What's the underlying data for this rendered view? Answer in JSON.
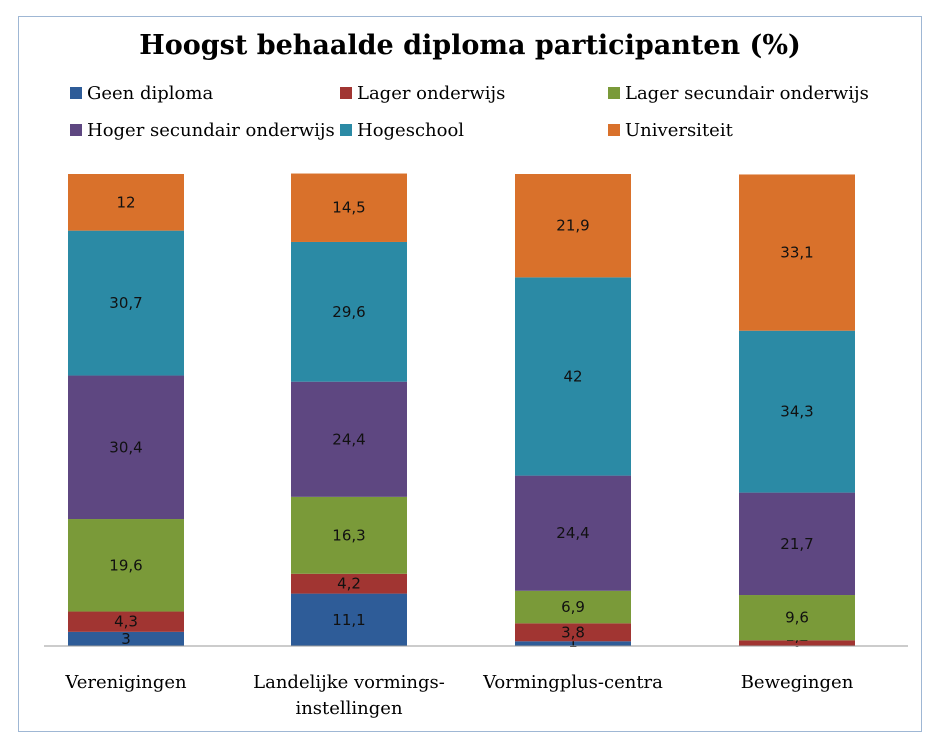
{
  "chart_data": {
    "type": "bar",
    "stacked": true,
    "title": "Hoogst behaalde diploma participanten (%)",
    "categories": [
      [
        "Verenigingen"
      ],
      [
        "Landelijke vormings-",
        "instellingen"
      ],
      [
        "Vormingplus-centra"
      ],
      [
        "Bewegingen"
      ]
    ],
    "series": [
      {
        "name": "Geen diploma",
        "color": "#2e5c98",
        "values": [
          3,
          11.1,
          1,
          0
        ],
        "labels": [
          "3",
          "11,1",
          "1",
          "0"
        ]
      },
      {
        "name": "Lager onderwijs",
        "color": "#a13532",
        "values": [
          4.3,
          4.2,
          3.8,
          1.2
        ],
        "labels": [
          "4,3",
          "4,2",
          "3,8",
          "1,2"
        ]
      },
      {
        "name": "Lager secundair onderwijs",
        "color": "#7a9a39",
        "values": [
          19.6,
          16.3,
          6.9,
          9.6
        ],
        "labels": [
          "19,6",
          "16,3",
          "6,9",
          "9,6"
        ]
      },
      {
        "name": "Hoger secundair onderwijs",
        "color": "#5e4781",
        "values": [
          30.4,
          24.4,
          24.4,
          21.7
        ],
        "labels": [
          "30,4",
          "24,4",
          "24,4",
          "21,7"
        ]
      },
      {
        "name": "Hogeschool",
        "color": "#2b8aa5",
        "values": [
          30.7,
          29.6,
          42,
          34.3
        ],
        "labels": [
          "30,7",
          "29,6",
          "42",
          "34,3"
        ]
      },
      {
        "name": "Universiteit",
        "color": "#d9712b",
        "values": [
          12,
          14.5,
          21.9,
          33.1
        ],
        "labels": [
          "12",
          "14,5",
          "21,9",
          "33,1"
        ]
      }
    ],
    "ylim": [
      0,
      100
    ],
    "grid": false,
    "legend": "top"
  }
}
